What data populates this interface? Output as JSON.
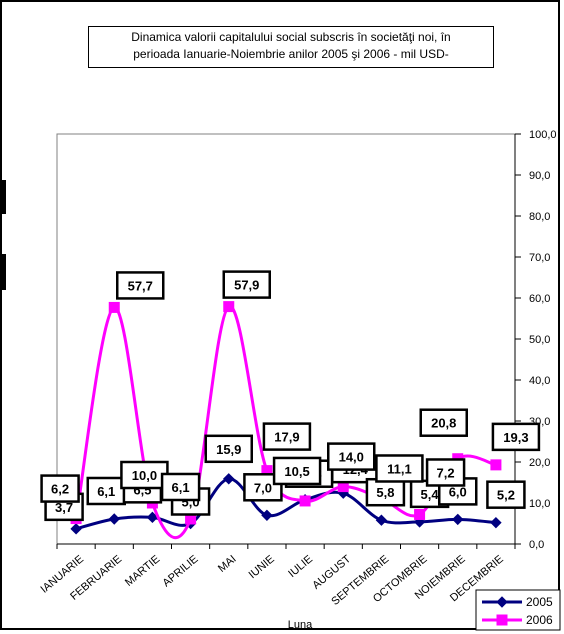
{
  "chart_data": {
    "type": "line",
    "title_lines": [
      "Dinamica  valorii capitalului social subscris în societăţi noi,  în",
      "perioada Ianuarie-Noiembrie anilor 2005 şi 2006  - mil  USD-"
    ],
    "xlabel": "Luna",
    "ylabel": "",
    "ylim": [
      0,
      100
    ],
    "yticks": [
      "0,0",
      "10,0",
      "20,0",
      "30,0",
      "40,0",
      "50,0",
      "60,0",
      "70,0",
      "80,0",
      "90,0",
      "100,0"
    ],
    "y_axis_side": "right",
    "grid": false,
    "legend_position": "bottom-right",
    "categories": [
      "IANUARIE",
      "FEBRUARIE",
      "MARTIE",
      "APRILIE",
      "MAI",
      "IUNIE",
      "IULIE",
      "AUGUST",
      "SEPTEMBRIE",
      "OCTOMBRIE",
      "NOIEMBRIE",
      "DECEMBRIE"
    ],
    "series": [
      {
        "name": "2005",
        "color": "#000080",
        "marker": "diamond",
        "values": [
          3.7,
          6.1,
          6.5,
          5.0,
          15.9,
          7.0,
          10.8,
          12.4,
          5.8,
          5.4,
          6.0,
          5.2
        ],
        "labels": [
          "3,7",
          "6,1",
          "6,5",
          "5,0",
          "15,9",
          "7,0",
          "10,8",
          "12,4",
          "5,8",
          "5,4",
          "6,0",
          "5,2"
        ]
      },
      {
        "name": "2006",
        "color": "#ff00ff",
        "marker": "square",
        "values": [
          6.2,
          57.7,
          10.0,
          6.1,
          57.9,
          17.9,
          10.5,
          14.0,
          11.1,
          7.2,
          20.8,
          19.3
        ],
        "labels": [
          "6,2",
          "57,7",
          "10,0",
          "6,1",
          "57,9",
          "17,9",
          "10,5",
          "14,0",
          "11,1",
          "7,2",
          "20,8",
          "19,3"
        ]
      }
    ]
  }
}
